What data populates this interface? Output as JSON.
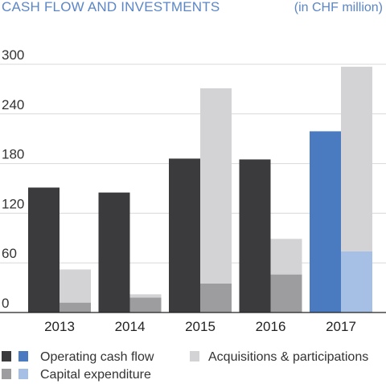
{
  "header": {
    "title": "CASH FLOW AND INVESTMENTS",
    "unit": "(in CHF million)"
  },
  "chart_data": {
    "type": "bar",
    "title": "CASH FLOW AND INVESTMENTS",
    "subtitle": "(in CHF million)",
    "categories": [
      "2013",
      "2014",
      "2015",
      "2016",
      "2017"
    ],
    "ylim": [
      0,
      300
    ],
    "yticks": [
      0,
      60,
      120,
      180,
      240,
      300
    ],
    "grid": true,
    "legend_position": "bottom",
    "series": [
      {
        "name": "Operating cash flow",
        "values": [
          151,
          145,
          186,
          185,
          219
        ]
      },
      {
        "name": "Capital expenditure",
        "values": [
          12,
          18,
          35,
          46,
          74
        ]
      },
      {
        "name": "Acquisitions & participations",
        "values": [
          40,
          4,
          236,
          43,
          223
        ]
      }
    ],
    "stacked_groups": [
      [
        "Operating cash flow"
      ],
      [
        "Capital expenditure",
        "Acquisitions & participations"
      ]
    ],
    "colors": {
      "operating_cash_flow": "#3b3b3d",
      "operating_cash_flow_highlight": "#4a7bc0",
      "capital_expenditure": "#9d9d9f",
      "capital_expenditure_highlight": "#a5c0e4",
      "acquisitions": "#d3d3d5",
      "acquisitions_highlight": "#d3d3d5"
    },
    "highlight_category": "2017"
  },
  "legend": {
    "items": [
      {
        "label": "Operating cash flow",
        "swatches": [
          "#3b3b3d",
          "#4a7bc0"
        ]
      },
      {
        "label": "Acquisitions & participations",
        "swatches": [
          "#d3d3d5"
        ]
      },
      {
        "label": "Capital expenditure",
        "swatches": [
          "#9d9d9f",
          "#a5c0e4"
        ]
      }
    ]
  }
}
